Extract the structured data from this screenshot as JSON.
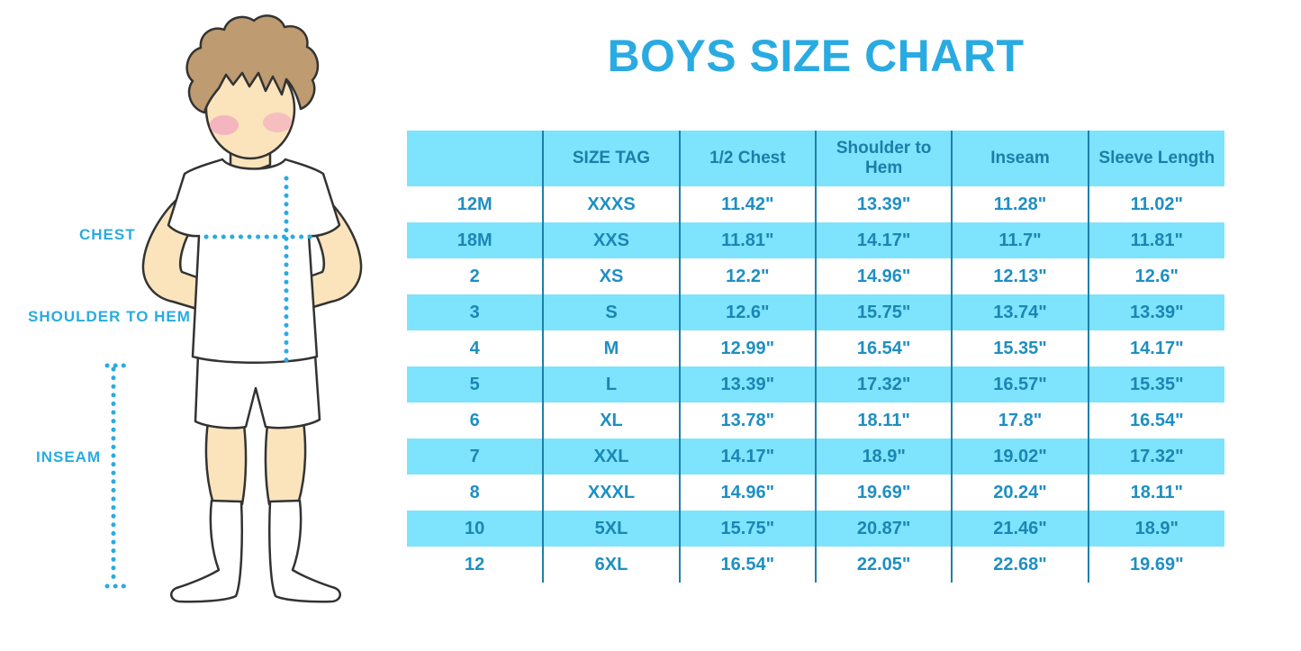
{
  "title": "BOYS SIZE CHART",
  "illustration": {
    "labels": {
      "chest": "CHEST",
      "shoulder_to_hem": "SHOULDER TO HEM",
      "inseam": "INSEAM"
    }
  },
  "colors": {
    "accent": "#29ABE2",
    "table_fill": "#7EE3FC",
    "divider": "#1F7FAB",
    "header_text": "#1B7EA9",
    "cell_text": "#1E8FC2",
    "skin": "#FBE4BC",
    "hair": "#BE9B70",
    "blush": "#F2A9BE",
    "outline": "#333333"
  },
  "chart_data": {
    "type": "table",
    "title": "BOYS SIZE CHART",
    "columns": [
      "",
      "SIZE TAG",
      "1/2 Chest",
      "Shoulder to Hem",
      "Inseam",
      "Sleeve Length"
    ],
    "rows": [
      [
        "12M",
        "XXXS",
        "11.42\"",
        "13.39\"",
        "11.28\"",
        "11.02\""
      ],
      [
        "18M",
        "XXS",
        "11.81\"",
        "14.17\"",
        "11.7\"",
        "11.81\""
      ],
      [
        "2",
        "XS",
        "12.2\"",
        "14.96\"",
        "12.13\"",
        "12.6\""
      ],
      [
        "3",
        "S",
        "12.6\"",
        "15.75\"",
        "13.74\"",
        "13.39\""
      ],
      [
        "4",
        "M",
        "12.99\"",
        "16.54\"",
        "15.35\"",
        "14.17\""
      ],
      [
        "5",
        "L",
        "13.39\"",
        "17.32\"",
        "16.57\"",
        "15.35\""
      ],
      [
        "6",
        "XL",
        "13.78\"",
        "18.11\"",
        "17.8\"",
        "16.54\""
      ],
      [
        "7",
        "XXL",
        "14.17\"",
        "18.9\"",
        "19.02\"",
        "17.32\""
      ],
      [
        "8",
        "XXXL",
        "14.96\"",
        "19.69\"",
        "20.24\"",
        "18.11\""
      ],
      [
        "10",
        "5XL",
        "15.75\"",
        "20.87\"",
        "21.46\"",
        "18.9\""
      ],
      [
        "12",
        "6XL",
        "16.54\"",
        "22.05\"",
        "22.68\"",
        "19.69\""
      ]
    ],
    "layout": {
      "striped_rows": true,
      "grid": "vertical-only",
      "legend": "none"
    }
  }
}
